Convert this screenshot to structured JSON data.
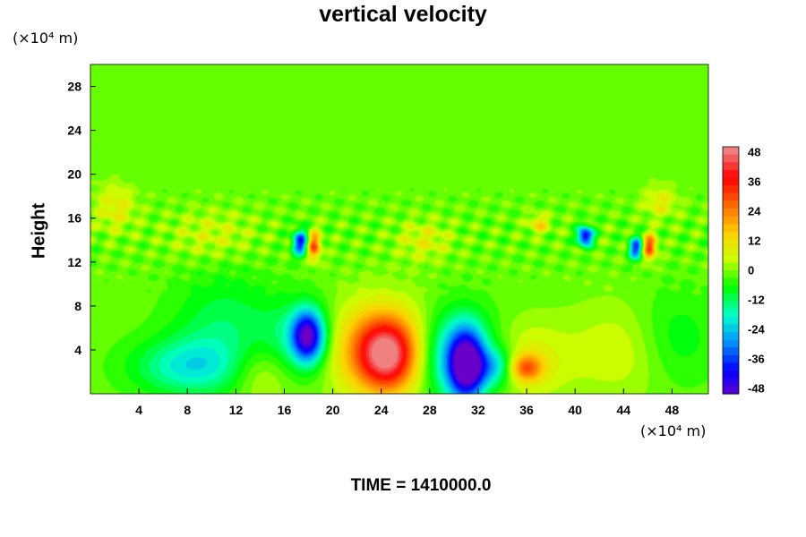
{
  "chart_data": {
    "type": "heatmap",
    "title": "vertical velocity",
    "ylabel": "Height",
    "y_unit": "(×10⁴ m)",
    "x_unit": "(×10⁴ m)",
    "footer": "TIME = 1410000.0",
    "xlim": [
      0,
      51
    ],
    "ylim": [
      0,
      30
    ],
    "x_ticks": [
      4,
      8,
      12,
      16,
      20,
      24,
      28,
      32,
      36,
      40,
      44,
      48
    ],
    "y_ticks": [
      4,
      8,
      12,
      16,
      20,
      24,
      28
    ],
    "colorbar": {
      "range": [
        -48,
        48
      ],
      "ticks": [
        48,
        36,
        24,
        12,
        0,
        -12,
        -24,
        -36,
        -48
      ],
      "colors": [
        "#f08080",
        "#ff0000",
        "#ff6a00",
        "#ffd000",
        "#c8ff00",
        "#00ff00",
        "#00ffcc",
        "#0090ff",
        "#0000ff",
        "#6a00c8"
      ]
    },
    "base_value": 0,
    "features": [
      {
        "x": 24.5,
        "y": 3.5,
        "value": 30,
        "sx": 1.6,
        "sy": 2.2
      },
      {
        "x": 22.5,
        "y": 4.2,
        "value": 18,
        "sx": 2.6,
        "sy": 2.8
      },
      {
        "x": 25.5,
        "y": 4.0,
        "value": 14,
        "sx": 2.5,
        "sy": 3.0
      },
      {
        "x": 35.8,
        "y": 2.4,
        "value": 26,
        "sx": 1.0,
        "sy": 0.9
      },
      {
        "x": 36.0,
        "y": 3.0,
        "value": 10,
        "sx": 2.5,
        "sy": 2.5
      },
      {
        "x": 31.0,
        "y": 2.6,
        "value": -42,
        "sx": 1.0,
        "sy": 2.2
      },
      {
        "x": 30.0,
        "y": 3.5,
        "value": -24,
        "sx": 2.4,
        "sy": 2.8
      },
      {
        "x": 33.5,
        "y": 2.5,
        "value": -18,
        "sx": 1.5,
        "sy": 1.2
      },
      {
        "x": 17.9,
        "y": 5.3,
        "value": -40,
        "sx": 0.9,
        "sy": 1.6
      },
      {
        "x": 17.5,
        "y": 5.0,
        "value": -14,
        "sx": 2.2,
        "sy": 2.4
      },
      {
        "x": 8.0,
        "y": 2.5,
        "value": -16,
        "sx": 3.2,
        "sy": 1.8
      },
      {
        "x": 11.0,
        "y": 6.0,
        "value": -10,
        "sx": 3.0,
        "sy": 3.5
      },
      {
        "x": 14.0,
        "y": 2.0,
        "value": 9,
        "sx": 1.8,
        "sy": 2.0
      },
      {
        "x": 44.0,
        "y": 4.0,
        "value": 8,
        "sx": 3.0,
        "sy": 3.0
      },
      {
        "x": 48.0,
        "y": 5.0,
        "value": -8,
        "sx": 2.5,
        "sy": 3.0
      },
      {
        "x": 17.3,
        "y": 13.8,
        "value": -36,
        "sx": 0.45,
        "sy": 0.8
      },
      {
        "x": 18.4,
        "y": 13.5,
        "value": 30,
        "sx": 0.4,
        "sy": 0.9
      },
      {
        "x": 40.8,
        "y": 14.4,
        "value": -42,
        "sx": 0.45,
        "sy": 0.6
      },
      {
        "x": 45.0,
        "y": 13.3,
        "value": -34,
        "sx": 0.4,
        "sy": 0.7
      },
      {
        "x": 46.1,
        "y": 13.4,
        "value": 32,
        "sx": 0.4,
        "sy": 0.8
      },
      {
        "x": 37.0,
        "y": 15.5,
        "value": 14,
        "sx": 0.6,
        "sy": 0.6
      },
      {
        "x": 2.0,
        "y": 17.0,
        "value": 10,
        "sx": 1.2,
        "sy": 1.5
      },
      {
        "x": 27.5,
        "y": 14.0,
        "value": 9,
        "sx": 1.5,
        "sy": 1.2
      },
      {
        "x": 10.0,
        "y": 14.5,
        "value": 7,
        "sx": 2.5,
        "sy": 1.5
      },
      {
        "x": 47.0,
        "y": 17.5,
        "value": 10,
        "sx": 1.0,
        "sy": 1.0
      }
    ]
  }
}
